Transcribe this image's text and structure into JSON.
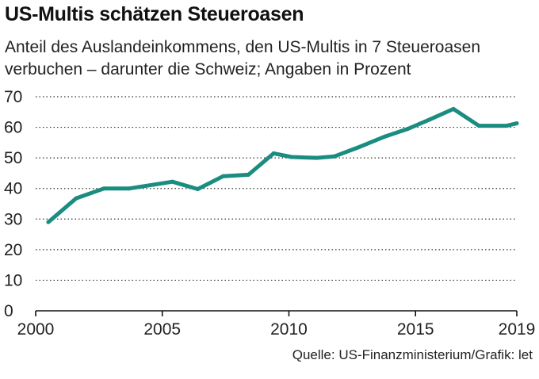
{
  "chart_data": {
    "type": "line",
    "title": "US-Multis schätzen Steueroasen",
    "subtitle": "Anteil des Auslandeinkommens, den US-Multis in 7 Steueroasen verbuchen – darunter die Schweiz; Angaben in Prozent",
    "source": "Quelle: US-Finanzministerium/Grafik: let",
    "xlabel": "",
    "ylabel": "",
    "xlim": [
      2000,
      2019
    ],
    "ylim": [
      0,
      70
    ],
    "x_ticks": [
      "2000",
      "2005",
      "2010",
      "2015",
      "2019"
    ],
    "y_ticks": [
      "0",
      "10",
      "20",
      "30",
      "40",
      "50",
      "60",
      "70"
    ],
    "grid": true,
    "legend": "none",
    "series_color": "#1a8c80",
    "x": [
      2000.5,
      2001.6,
      2002.7,
      2003.7,
      2004.7,
      2005.4,
      2006.4,
      2007.4,
      2008.4,
      2009.4,
      2010.1,
      2011.1,
      2011.8,
      2012.7,
      2013.8,
      2014.7,
      2015.6,
      2016.5,
      2017.5,
      2018.6,
      2019
    ],
    "values": [
      29,
      36.8,
      40,
      40,
      41.3,
      42.2,
      39.8,
      44,
      44.5,
      51.5,
      50.3,
      50,
      50.5,
      53.3,
      57,
      59.5,
      62.7,
      66,
      60.5,
      60.5,
      61.3
    ]
  }
}
